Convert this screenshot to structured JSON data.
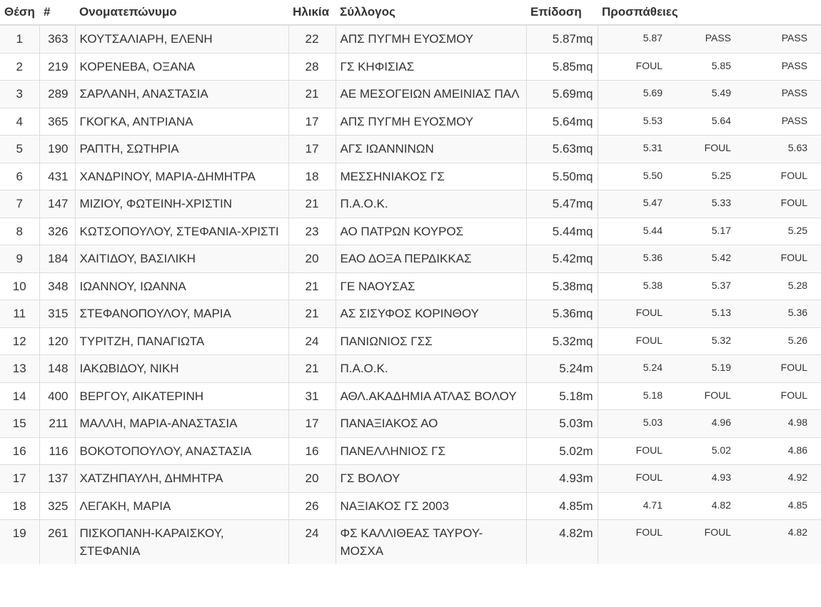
{
  "table": {
    "headers": {
      "position": "Θέση",
      "bib": "#",
      "name": "Ονοματεπώνυμο",
      "age": "Ηλικία",
      "club": "Σύλλογος",
      "performance": "Επίδοση",
      "attempts": "Προσπάθειες"
    },
    "rows": [
      {
        "pos": "1",
        "bib": "363",
        "name": "ΚΟΥΤΣΑΛΙΑΡΗ, ΕΛΕΝΗ",
        "age": "22",
        "club": "ΑΠΣ ΠΥΓΜΗ ΕΥΟΣΜΟΥ",
        "perf": "5.87mq",
        "a1": "5.87",
        "a2": "PASS",
        "a3": "PASS"
      },
      {
        "pos": "2",
        "bib": "219",
        "name": "ΚΟΡΕΝΕΒΑ, ΟΞΑΝΑ",
        "age": "28",
        "club": "ΓΣ ΚΗΦΙΣΙΑΣ",
        "perf": "5.85mq",
        "a1": "FOUL",
        "a2": "5.85",
        "a3": "PASS"
      },
      {
        "pos": "3",
        "bib": "289",
        "name": "ΣΑΡΛΑΝΗ, ΑΝΑΣΤΑΣΙΑ",
        "age": "21",
        "club": "ΑΕ ΜΕΣΟΓΕΙΩΝ ΑΜΕΙΝΙΑΣ ΠΑΛ",
        "perf": "5.69mq",
        "a1": "5.69",
        "a2": "5.49",
        "a3": "PASS"
      },
      {
        "pos": "4",
        "bib": "365",
        "name": "ΓΚΟΓΚΑ, ΑΝΤΡΙΑΝΑ",
        "age": "17",
        "club": "ΑΠΣ ΠΥΓΜΗ ΕΥΟΣΜΟΥ",
        "perf": "5.64mq",
        "a1": "5.53",
        "a2": "5.64",
        "a3": "PASS"
      },
      {
        "pos": "5",
        "bib": "190",
        "name": "ΡΑΠΤΗ, ΣΩΤΗΡΙΑ",
        "age": "17",
        "club": "ΑΓΣ ΙΩΑΝΝΙΝΩΝ",
        "perf": "5.63mq",
        "a1": "5.31",
        "a2": "FOUL",
        "a3": "5.63"
      },
      {
        "pos": "6",
        "bib": "431",
        "name": "ΧΑΝΔΡΙΝΟΥ, ΜΑΡΙΑ-ΔΗΜΗΤΡΑ",
        "age": "18",
        "club": "ΜΕΣΣΗΝΙΑΚΟΣ ΓΣ",
        "perf": "5.50mq",
        "a1": "5.50",
        "a2": "5.25",
        "a3": "FOUL"
      },
      {
        "pos": "7",
        "bib": "147",
        "name": "ΜΙΖΙΟΥ, ΦΩΤΕΙΝΗ-ΧΡΙΣΤΙΝ",
        "age": "21",
        "club": "Π.Α.Ο.Κ.",
        "perf": "5.47mq",
        "a1": "5.47",
        "a2": "5.33",
        "a3": "FOUL"
      },
      {
        "pos": "8",
        "bib": "326",
        "name": "ΚΩΤΣΟΠΟΥΛΟΥ, ΣΤΕΦΑΝΙΑ-ΧΡΙΣΤΙ",
        "age": "23",
        "club": "ΑΟ ΠΑΤΡΩΝ ΚΟΥΡΟΣ",
        "perf": "5.44mq",
        "a1": "5.44",
        "a2": "5.17",
        "a3": "5.25"
      },
      {
        "pos": "9",
        "bib": "184",
        "name": "ΧΑΙΤΙΔΟΥ, ΒΑΣΙΛΙΚΗ",
        "age": "20",
        "club": "ΕΑΟ ΔΟΞΑ ΠΕΡΔΙΚΚΑΣ",
        "perf": "5.42mq",
        "a1": "5.36",
        "a2": "5.42",
        "a3": "FOUL"
      },
      {
        "pos": "10",
        "bib": "348",
        "name": "ΙΩΑΝΝΟΥ, ΙΩΑΝΝΑ",
        "age": "21",
        "club": "ΓΕ ΝΑΟΥΣΑΣ",
        "perf": "5.38mq",
        "a1": "5.38",
        "a2": "5.37",
        "a3": "5.28"
      },
      {
        "pos": "11",
        "bib": "315",
        "name": "ΣΤΕΦΑΝΟΠΟΥΛΟΥ, ΜΑΡΙΑ",
        "age": "21",
        "club": "ΑΣ ΣΙΣΥΦΟΣ ΚΟΡΙΝΘΟΥ",
        "perf": "5.36mq",
        "a1": "FOUL",
        "a2": "5.13",
        "a3": "5.36"
      },
      {
        "pos": "12",
        "bib": "120",
        "name": "ΤΥΡΙΤΖΗ, ΠΑΝΑΓΙΩΤΑ",
        "age": "24",
        "club": "ΠΑΝΙΩΝΙΟΣ ΓΣΣ",
        "perf": "5.32mq",
        "a1": "FOUL",
        "a2": "5.32",
        "a3": "5.26"
      },
      {
        "pos": "13",
        "bib": "148",
        "name": "ΙΑΚΩΒΙΔΟΥ, ΝΙΚΗ",
        "age": "21",
        "club": "Π.Α.Ο.Κ.",
        "perf": "5.24m",
        "a1": "5.24",
        "a2": "5.19",
        "a3": "FOUL"
      },
      {
        "pos": "14",
        "bib": "400",
        "name": "ΒΕΡΓΟΥ, ΑΙΚΑΤΕΡΙΝΗ",
        "age": "31",
        "club": "ΑΘΛ.ΑΚΑΔΗΜΙΑ ΑΤΛΑΣ ΒΟΛΟΥ",
        "perf": "5.18m",
        "a1": "5.18",
        "a2": "FOUL",
        "a3": "FOUL"
      },
      {
        "pos": "15",
        "bib": "211",
        "name": "ΜΑΛΛΗ, ΜΑΡΙΑ-ΑΝΑΣΤΑΣΙΑ",
        "age": "17",
        "club": "ΠΑΝΑΞΙΑΚΟΣ ΑΟ",
        "perf": "5.03m",
        "a1": "5.03",
        "a2": "4.96",
        "a3": "4.98"
      },
      {
        "pos": "16",
        "bib": "116",
        "name": "ΒΟΚΟΤΟΠΟΥΛΟΥ, ΑΝΑΣΤΑΣΙΑ",
        "age": "16",
        "club": "ΠΑΝΕΛΛΗΝΙΟΣ ΓΣ",
        "perf": "5.02m",
        "a1": "FOUL",
        "a2": "5.02",
        "a3": "4.86"
      },
      {
        "pos": "17",
        "bib": "137",
        "name": "ΧΑΤΖΗΠΑΥΛΗ, ΔΗΜΗΤΡΑ",
        "age": "20",
        "club": "ΓΣ ΒΟΛΟΥ",
        "perf": "4.93m",
        "a1": "FOUL",
        "a2": "4.93",
        "a3": "4.92"
      },
      {
        "pos": "18",
        "bib": "325",
        "name": "ΛΕΓΑΚΗ, ΜΑΡΙΑ",
        "age": "26",
        "club": "ΝΑΞΙΑΚΟΣ ΓΣ 2003",
        "perf": "4.85m",
        "a1": "4.71",
        "a2": "4.82",
        "a3": "4.85"
      },
      {
        "pos": "19",
        "bib": "261",
        "name": "ΠΙΣΚΟΠΑΝΗ-ΚΑΡΑΙΣΚΟΥ, ΣΤΕΦΑΝΙΑ",
        "age": "24",
        "club": "ΦΣ ΚΑΛΛΙΘΕΑΣ ΤΑΥΡΟΥ-ΜΟΣΧΑ",
        "perf": "4.82m",
        "a1": "FOUL",
        "a2": "FOUL",
        "a3": "4.82"
      }
    ]
  }
}
